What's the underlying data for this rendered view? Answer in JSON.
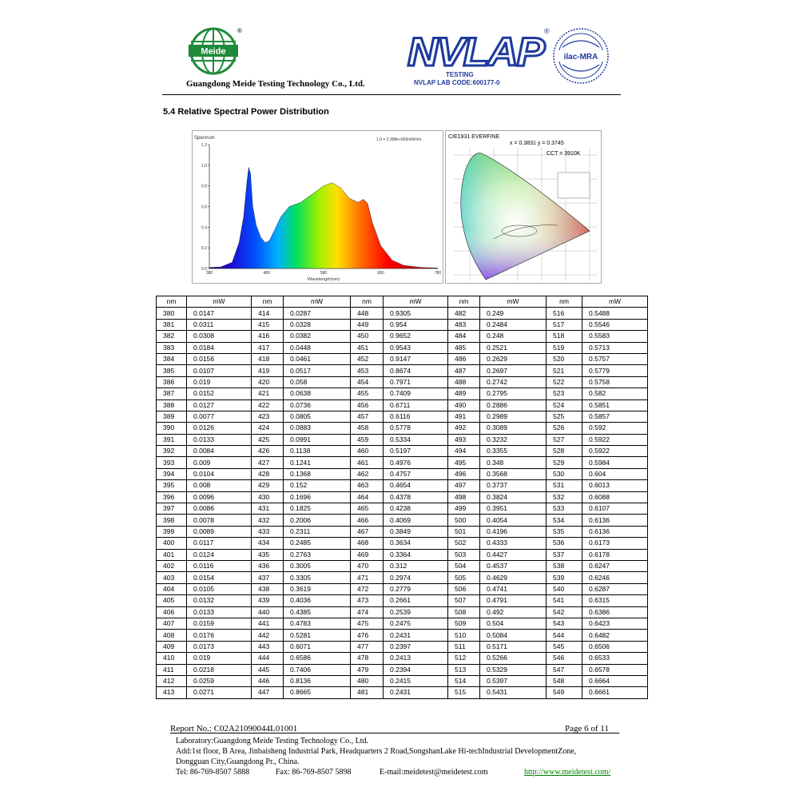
{
  "header": {
    "meide_logo_text": "Meide",
    "registered_mark": "®",
    "company_name": "Guangdong Meide Testing Technology Co., Ltd.",
    "nvlap_wordmark": "NVLAP",
    "nvlap_testing": "TESTING",
    "nvlap_lab_code": "NVLAP LAB CODE:600177-0",
    "ilac_text": "ilac-MRA"
  },
  "section_title": "5.4  Relative Spectral Power Distribution",
  "spectrum_chart": {
    "title": "Spectrum",
    "scale_note": "1.0 = 2.308e+003mW/nm",
    "xlabel": "Wavelength(nm)",
    "xticks": [
      "380",
      "480",
      "580",
      "680",
      "780"
    ],
    "yticks": [
      "0.0",
      "0.2",
      "0.4",
      "0.6",
      "0.8",
      "1.0",
      "1.2"
    ]
  },
  "cie_chart": {
    "title": "CIE1931  EVERFINE",
    "coords": "x = 0.3831 y = 0.3745",
    "cct": "CCT = 3910K"
  },
  "table": {
    "headers": [
      "nm",
      "mW",
      "nm",
      "mW",
      "nm",
      "mW",
      "nm",
      "mW",
      "nm",
      "mW"
    ],
    "rows": [
      [
        "380",
        "0.0147",
        "414",
        "0.0287",
        "448",
        "0.9305",
        "482",
        "0.249",
        "516",
        "0.5488"
      ],
      [
        "381",
        "0.0311",
        "415",
        "0.0328",
        "449",
        "0.954",
        "483",
        "0.2484",
        "517",
        "0.5546"
      ],
      [
        "382",
        "0.0308",
        "416",
        "0.0382",
        "450",
        "0.9652",
        "484",
        "0.248",
        "518",
        "0.5583"
      ],
      [
        "383",
        "0.0184",
        "417",
        "0.0448",
        "451",
        "0.9543",
        "485",
        "0.2521",
        "519",
        "0.5713"
      ],
      [
        "384",
        "0.0156",
        "418",
        "0.0461",
        "452",
        "0.9147",
        "486",
        "0.2629",
        "520",
        "0.5757"
      ],
      [
        "385",
        "0.0107",
        "419",
        "0.0517",
        "453",
        "0.8674",
        "487",
        "0.2697",
        "521",
        "0.5779"
      ],
      [
        "386",
        "0.019",
        "420",
        "0.058",
        "454",
        "0.7971",
        "488",
        "0.2742",
        "522",
        "0.5758"
      ],
      [
        "387",
        "0.0152",
        "421",
        "0.0638",
        "455",
        "0.7409",
        "489",
        "0.2795",
        "523",
        "0.582"
      ],
      [
        "388",
        "0.0127",
        "422",
        "0.0736",
        "456",
        "0.6711",
        "490",
        "0.2886",
        "524",
        "0.5851"
      ],
      [
        "389",
        "0.0077",
        "423",
        "0.0805",
        "457",
        "0.6116",
        "491",
        "0.2989",
        "525",
        "0.5857"
      ],
      [
        "390",
        "0.0126",
        "424",
        "0.0883",
        "458",
        "0.5778",
        "492",
        "0.3089",
        "526",
        "0.592"
      ],
      [
        "391",
        "0.0133",
        "425",
        "0.0991",
        "459",
        "0.5334",
        "493",
        "0.3232",
        "527",
        "0.5922"
      ],
      [
        "392",
        "0.0084",
        "426",
        "0.1138",
        "460",
        "0.5197",
        "494",
        "0.3355",
        "528",
        "0.5922"
      ],
      [
        "393",
        "0.009",
        "427",
        "0.1241",
        "461",
        "0.4976",
        "495",
        "0.348",
        "529",
        "0.5984"
      ],
      [
        "394",
        "0.0104",
        "428",
        "0.1368",
        "462",
        "0.4757",
        "496",
        "0.3568",
        "530",
        "0.604"
      ],
      [
        "395",
        "0.008",
        "429",
        "0.152",
        "463",
        "0.4654",
        "497",
        "0.3737",
        "531",
        "0.6013"
      ],
      [
        "396",
        "0.0096",
        "430",
        "0.1696",
        "464",
        "0.4378",
        "498",
        "0.3824",
        "532",
        "0.6088"
      ],
      [
        "397",
        "0.0086",
        "431",
        "0.1825",
        "465",
        "0.4238",
        "499",
        "0.3951",
        "533",
        "0.6107"
      ],
      [
        "398",
        "0.0078",
        "432",
        "0.2006",
        "466",
        "0.4069",
        "500",
        "0.4054",
        "534",
        "0.6136"
      ],
      [
        "399",
        "0.0089",
        "433",
        "0.2311",
        "467",
        "0.3849",
        "501",
        "0.4196",
        "535",
        "0.6136"
      ],
      [
        "400",
        "0.0117",
        "434",
        "0.2485",
        "468",
        "0.3634",
        "502",
        "0.4333",
        "536",
        "0.6173"
      ],
      [
        "401",
        "0.0124",
        "435",
        "0.2763",
        "469",
        "0.3364",
        "503",
        "0.4427",
        "537",
        "0.6178"
      ],
      [
        "402",
        "0.0116",
        "436",
        "0.3005",
        "470",
        "0.312",
        "504",
        "0.4537",
        "538",
        "0.6247"
      ],
      [
        "403",
        "0.0154",
        "437",
        "0.3305",
        "471",
        "0.2974",
        "505",
        "0.4629",
        "539",
        "0.6246"
      ],
      [
        "404",
        "0.0105",
        "438",
        "0.3619",
        "472",
        "0.2779",
        "506",
        "0.4741",
        "540",
        "0.6287"
      ],
      [
        "405",
        "0.0132",
        "439",
        "0.4036",
        "473",
        "0.2661",
        "507",
        "0.4791",
        "541",
        "0.6315"
      ],
      [
        "406",
        "0.0133",
        "440",
        "0.4385",
        "474",
        "0.2539",
        "508",
        "0.492",
        "542",
        "0.6386"
      ],
      [
        "407",
        "0.0159",
        "441",
        "0.4783",
        "475",
        "0.2475",
        "509",
        "0.504",
        "543",
        "0.6423"
      ],
      [
        "408",
        "0.0176",
        "442",
        "0.5281",
        "476",
        "0.2431",
        "510",
        "0.5084",
        "544",
        "0.6482"
      ],
      [
        "409",
        "0.0173",
        "443",
        "0.6071",
        "477",
        "0.2397",
        "511",
        "0.5171",
        "545",
        "0.6506"
      ],
      [
        "410",
        "0.019",
        "444",
        "0.6586",
        "478",
        "0.2413",
        "512",
        "0.5266",
        "546",
        "0.6533"
      ],
      [
        "411",
        "0.0218",
        "445",
        "0.7406",
        "479",
        "0.2394",
        "513",
        "0.5329",
        "547",
        "0.6578"
      ],
      [
        "412",
        "0.0259",
        "446",
        "0.8136",
        "480",
        "0.2415",
        "514",
        "0.5397",
        "548",
        "0.6664"
      ],
      [
        "413",
        "0.0271",
        "447",
        "0.8665",
        "481",
        "0.2431",
        "515",
        "0.5431",
        "549",
        "0.6661"
      ]
    ]
  },
  "footer": {
    "report_no": "Report No.: C02A21090044L01001",
    "page": "Page 6 of 11",
    "laboratory": "Laboratory:Guangdong Meide Testing Technology Co., Ltd.",
    "address_line1": "Add:1st floor, B Area, Jinbaisheng Industrial Park, Headquarters 2 Road,SongshanLake Hi-techIndustrial DevelopmentZone,",
    "address_line2": "Dongguan City,Guangdong Pr., China.",
    "tel": "Tel:  86-769-8507 5888",
    "fax": "Fax:  86-769-8507 5898",
    "email": "E-mail:meidetest@meidetest.com",
    "website": "http://www.meidetest.com/"
  },
  "colors": {
    "meide_green": "#1f8a3a",
    "nvlap_blue": "#1e3a9e",
    "link_green": "#008000"
  }
}
